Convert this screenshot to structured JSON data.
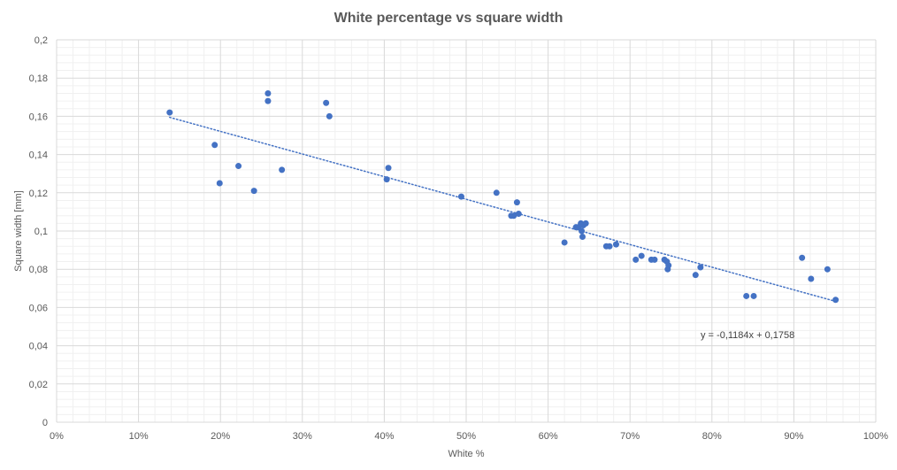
{
  "chart_data": {
    "type": "scatter",
    "title": "White percentage vs square width",
    "xlabel": "White %",
    "ylabel": "Square width [mm]",
    "xlim": [
      0,
      1
    ],
    "ylim": [
      0,
      0.2
    ],
    "x_ticks": [
      "0%",
      "10%",
      "20%",
      "30%",
      "40%",
      "50%",
      "60%",
      "70%",
      "80%",
      "90%",
      "100%"
    ],
    "y_ticks": [
      "0",
      "0,02",
      "0,04",
      "0,06",
      "0,08",
      "0,1",
      "0,12",
      "0,14",
      "0,16",
      "0,18",
      "0,2"
    ],
    "grid": true,
    "marker_color": "#4472C4",
    "series": [
      {
        "points": [
          [
            0.138,
            0.162
          ],
          [
            0.193,
            0.145
          ],
          [
            0.199,
            0.125
          ],
          [
            0.222,
            0.134
          ],
          [
            0.241,
            0.121
          ],
          [
            0.258,
            0.172
          ],
          [
            0.258,
            0.168
          ],
          [
            0.275,
            0.132
          ],
          [
            0.329,
            0.167
          ],
          [
            0.333,
            0.16
          ],
          [
            0.403,
            0.127
          ],
          [
            0.405,
            0.133
          ],
          [
            0.494,
            0.118
          ],
          [
            0.537,
            0.12
          ],
          [
            0.555,
            0.108
          ],
          [
            0.558,
            0.108
          ],
          [
            0.562,
            0.115
          ],
          [
            0.564,
            0.109
          ],
          [
            0.62,
            0.094
          ],
          [
            0.634,
            0.102
          ],
          [
            0.637,
            0.102
          ],
          [
            0.64,
            0.104
          ],
          [
            0.641,
            0.1
          ],
          [
            0.642,
            0.097
          ],
          [
            0.643,
            0.103
          ],
          [
            0.646,
            0.104
          ],
          [
            0.671,
            0.092
          ],
          [
            0.675,
            0.092
          ],
          [
            0.683,
            0.093
          ],
          [
            0.707,
            0.085
          ],
          [
            0.714,
            0.087
          ],
          [
            0.726,
            0.085
          ],
          [
            0.73,
            0.085
          ],
          [
            0.742,
            0.085
          ],
          [
            0.745,
            0.084
          ],
          [
            0.746,
            0.08
          ],
          [
            0.747,
            0.082
          ],
          [
            0.78,
            0.077
          ],
          [
            0.786,
            0.081
          ],
          [
            0.842,
            0.066
          ],
          [
            0.851,
            0.066
          ],
          [
            0.91,
            0.086
          ],
          [
            0.921,
            0.075
          ],
          [
            0.941,
            0.08
          ],
          [
            0.951,
            0.064
          ]
        ]
      }
    ],
    "trendline": {
      "type": "linear",
      "slope": -0.1184,
      "intercept": 0.1758,
      "x_range": [
        0.138,
        0.951
      ],
      "style": "dotted",
      "color": "#4472C4",
      "equation_label": "y = -0,1184x + 0,1758"
    }
  }
}
